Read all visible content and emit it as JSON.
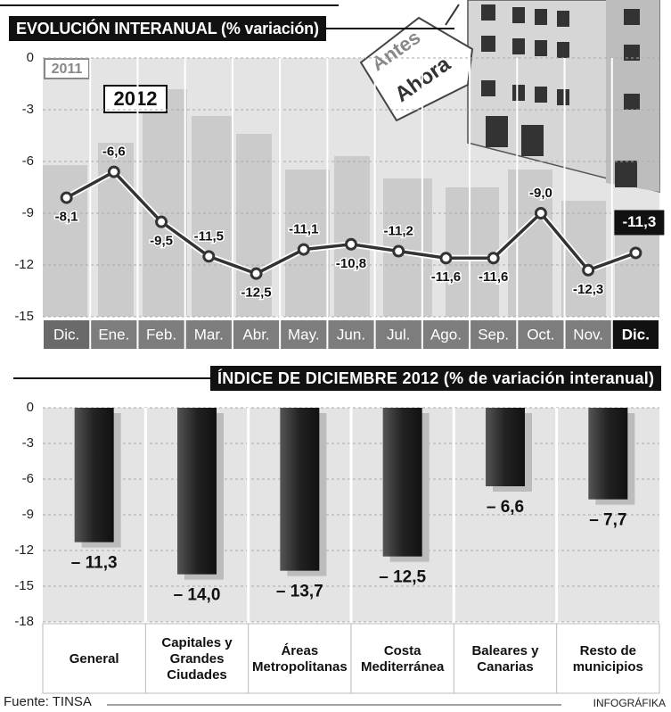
{
  "chart_data": [
    {
      "type": "line",
      "title": "EVOLUCIÓN INTERANUAL (% variación)",
      "annotations": [
        "2011",
        "2012",
        "Antes",
        "Ahora"
      ],
      "categories": [
        "Dic.",
        "Ene.",
        "Feb.",
        "Mar.",
        "Abr.",
        "May.",
        "Jun.",
        "Jul.",
        "Ago.",
        "Sep.",
        "Oct.",
        "Nov.",
        "Dic."
      ],
      "values": [
        -8.1,
        -6.6,
        -9.5,
        -11.5,
        -12.5,
        -11.1,
        -10.8,
        -11.2,
        -11.6,
        -11.6,
        -9.0,
        -12.3,
        -11.3
      ],
      "value_labels": [
        "-8,1",
        "-6,6",
        "-9,5",
        "-11,5",
        "-12,5",
        "-11,1",
        "-10,8",
        "-11,2",
        "-11,6",
        "-11,6",
        "-9,0",
        "-12,3",
        "-11,3"
      ],
      "color": "#333333",
      "ylim": [
        -15,
        0
      ],
      "yticks": [
        0,
        -3,
        -6,
        -9,
        -12,
        -15
      ],
      "grid": true
    },
    {
      "type": "bar",
      "title": "ÍNDICE DE DICIEMBRE 2012 (% de variación interanual)",
      "categories": [
        "General",
        "Capitales y Grandes Ciudades",
        "Áreas Metropolitanas",
        "Costa Mediterránea",
        "Baleares y Canarias",
        "Resto de municipios"
      ],
      "values": [
        -11.3,
        -14.0,
        -13.7,
        -12.5,
        -6.6,
        -7.7
      ],
      "value_labels": [
        "– 11,3",
        "– 14,0",
        "– 13,7",
        "– 12,5",
        "– 6,6",
        "– 7,7"
      ],
      "color": "#2b2b2b",
      "ylim": [
        -18,
        0
      ],
      "yticks": [
        0,
        -3,
        -6,
        -9,
        -12,
        -15,
        -18
      ],
      "grid": true
    }
  ],
  "footer": {
    "source": "Fuente: TINSA",
    "credit": "INFOGRÁFIKA"
  }
}
